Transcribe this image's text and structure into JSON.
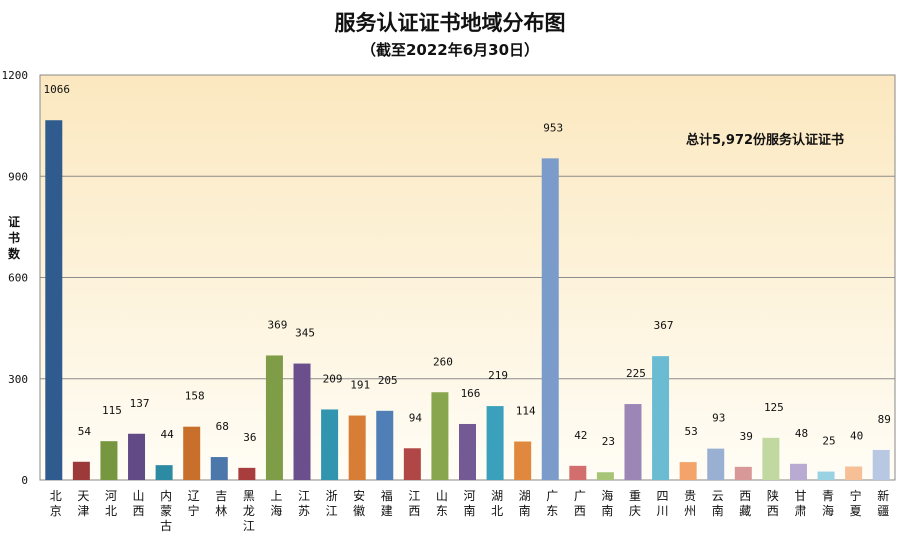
{
  "chart_data": {
    "type": "bar",
    "title": "服务认证证书地域分布图",
    "subtitle": "（截至2022年6月30日）",
    "ylabel": "证书数",
    "xlabel": "",
    "ylim": [
      0,
      1200
    ],
    "yticks": [
      0,
      300,
      600,
      900,
      1200
    ],
    "grid": true,
    "legend": "none",
    "annotation": "总计5,972份服务认证证书",
    "categories": [
      "北京",
      "天津",
      "河北",
      "山西",
      "内蒙古",
      "辽宁",
      "吉林",
      "黑龙江",
      "上海",
      "江苏",
      "浙江",
      "安徽",
      "福建",
      "江西",
      "山东",
      "河南",
      "湖北",
      "湖南",
      "广东",
      "广西",
      "海南",
      "重庆",
      "四川",
      "贵州",
      "云南",
      "西藏",
      "陕西",
      "甘肃",
      "青海",
      "宁夏",
      "新疆"
    ],
    "values": [
      1066,
      54,
      115,
      137,
      44,
      158,
      68,
      36,
      369,
      345,
      209,
      191,
      205,
      94,
      260,
      166,
      219,
      114,
      953,
      42,
      23,
      225,
      367,
      53,
      93,
      39,
      125,
      48,
      25,
      40,
      89
    ],
    "bar_colors": [
      "#2f5b8e",
      "#9c3a3a",
      "#779640",
      "#614a85",
      "#2d8aa3",
      "#c8702b",
      "#4b77ab",
      "#a83d3d",
      "#7f9d47",
      "#6a4f8c",
      "#3195b0",
      "#d77d35",
      "#4f7fb6",
      "#b04646",
      "#88a64d",
      "#745a95",
      "#3aa0bb",
      "#e0883d",
      "#7b9bcb",
      "#d26e6e",
      "#a8c477",
      "#9b86b6",
      "#6bbcd3",
      "#f4a46a",
      "#9ab0d3",
      "#d99898",
      "#c1d9a1",
      "#b8aad0",
      "#99d3e3",
      "#f7bf95",
      "#b8c8e3"
    ]
  }
}
